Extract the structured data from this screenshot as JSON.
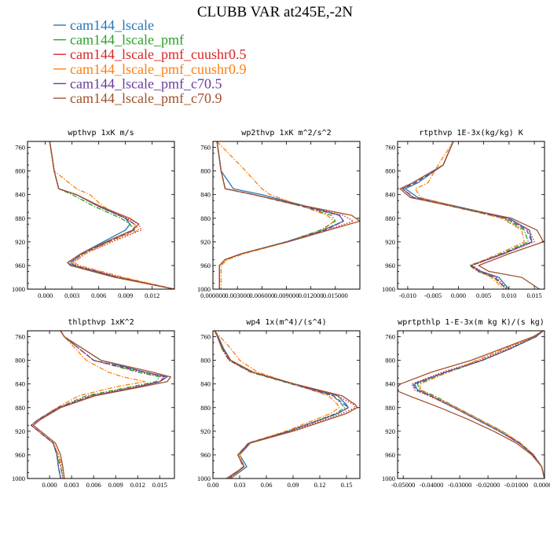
{
  "chart_data": {
    "type": "line",
    "title": "CLUBB VAR at245E,-2N",
    "legend": [
      {
        "name": "cam144_lscale",
        "color": "#2878b4",
        "dash": "solid"
      },
      {
        "name": "cam144_lscale_pmf",
        "color": "#2ca02c",
        "dash": "dashdot"
      },
      {
        "name": "cam144_lscale_pmf_cuushr0.5",
        "color": "#d62728",
        "dash": "dotted"
      },
      {
        "name": "cam144_lscale_pmf_cuushr0.9",
        "color": "#ff7f0e",
        "dash": "dashdot"
      },
      {
        "name": "cam144_lscale_pmf_c70.5",
        "color": "#6a3d9a",
        "dash": "dashed"
      },
      {
        "name": "cam144_lscale_pmf_c70.9",
        "color": "#a0522d",
        "dash": "solid"
      }
    ],
    "y_axis": {
      "ylim": [
        1000,
        750
      ],
      "ticks": [
        760,
        800,
        840,
        880,
        920,
        960,
        1000
      ],
      "tick_labels": [
        "760",
        "800",
        "840",
        "880",
        "920",
        "960",
        "1000"
      ]
    },
    "panels": [
      {
        "title": "wpthvp  1xK m/s",
        "xlim": [
          -0.002,
          0.0145
        ],
        "xticks": [
          0.0,
          0.003,
          0.006,
          0.009,
          0.012
        ],
        "xtick_labels": [
          "0.000",
          "0.003",
          "0.006",
          "0.009",
          "0.012"
        ],
        "p": [
          750,
          800,
          830,
          840,
          860,
          880,
          890,
          900,
          920,
          940,
          955,
          960,
          980,
          1000
        ],
        "series": [
          [
            0.0005,
            0.001,
            0.0015,
            0.0035,
            0.006,
            0.009,
            0.0095,
            0.009,
            0.0065,
            0.004,
            0.0025,
            0.003,
            0.008,
            0.0145
          ],
          [
            0.0005,
            0.001,
            0.0015,
            0.003,
            0.0055,
            0.0085,
            0.0095,
            0.01,
            0.007,
            0.0042,
            0.0028,
            0.0032,
            0.0082,
            0.0145
          ],
          [
            0.0005,
            0.001,
            0.0015,
            0.0035,
            0.006,
            0.0092,
            0.0105,
            0.0108,
            0.0075,
            0.0045,
            0.003,
            0.0035,
            0.0085,
            0.0145
          ],
          [
            0.0005,
            0.001,
            0.0035,
            0.005,
            0.0065,
            0.009,
            0.01,
            0.0105,
            0.0072,
            0.0045,
            0.0032,
            0.0038,
            0.0088,
            0.0145
          ],
          [
            0.0005,
            0.001,
            0.0015,
            0.0035,
            0.006,
            0.009,
            0.01,
            0.01,
            0.007,
            0.0042,
            0.0028,
            0.0033,
            0.0082,
            0.0145
          ],
          [
            0.0005,
            0.001,
            0.0015,
            0.0035,
            0.0062,
            0.0095,
            0.0105,
            0.0098,
            0.0068,
            0.004,
            0.0025,
            0.0028,
            0.0078,
            0.0145
          ]
        ]
      },
      {
        "title": "wp2thvp  1xK m^2/s^2",
        "xlim": [
          0.0,
          0.018
        ],
        "xticks": [
          0.0,
          0.003,
          0.006,
          0.009,
          0.012,
          0.015
        ],
        "xtick_labels": [
          "0.000000",
          "0.003000",
          "0.006000",
          "0.009000",
          "0.012000",
          "0.015000"
        ],
        "p": [
          750,
          800,
          830,
          840,
          860,
          875,
          885,
          900,
          920,
          940,
          950,
          960,
          1000
        ],
        "series": [
          [
            0.0005,
            0.001,
            0.0025,
            0.006,
            0.0115,
            0.0155,
            0.016,
            0.0135,
            0.009,
            0.0035,
            0.0015,
            0.0008,
            0.0008
          ],
          [
            0.0005,
            0.001,
            0.0015,
            0.005,
            0.011,
            0.0145,
            0.015,
            0.0132,
            0.009,
            0.0035,
            0.0015,
            0.0008,
            0.0008
          ],
          [
            0.0005,
            0.001,
            0.0015,
            0.005,
            0.0112,
            0.016,
            0.0172,
            0.014,
            0.0092,
            0.0035,
            0.0015,
            0.0008,
            0.0008
          ],
          [
            0.0005,
            0.004,
            0.006,
            0.007,
            0.011,
            0.014,
            0.0148,
            0.0135,
            0.0092,
            0.0038,
            0.0018,
            0.001,
            0.001
          ],
          [
            0.0005,
            0.001,
            0.0015,
            0.005,
            0.011,
            0.0155,
            0.016,
            0.0138,
            0.009,
            0.0035,
            0.0015,
            0.0008,
            0.0008
          ],
          [
            0.0005,
            0.001,
            0.0015,
            0.005,
            0.0115,
            0.017,
            0.018,
            0.0142,
            0.0092,
            0.0035,
            0.0015,
            0.0008,
            0.0008
          ]
        ]
      },
      {
        "title": "rtpthvp  1E-3x(kg/kg) K",
        "xlim": [
          -0.012,
          0.017
        ],
        "xticks": [
          -0.01,
          -0.005,
          0.0,
          0.005,
          0.01,
          0.015
        ],
        "xtick_labels": [
          "-0.010",
          "-0.005",
          "0.000",
          "0.005",
          "0.010",
          "0.015"
        ],
        "p": [
          750,
          790,
          820,
          830,
          845,
          880,
          900,
          920,
          940,
          960,
          970,
          980,
          1000
        ],
        "series": [
          [
            -0.001,
            -0.003,
            -0.008,
            -0.0105,
            -0.008,
            0.01,
            0.014,
            0.0145,
            0.009,
            0.0025,
            0.0045,
            0.008,
            0.01
          ],
          [
            -0.001,
            -0.003,
            -0.009,
            -0.011,
            -0.009,
            0.009,
            0.013,
            0.0138,
            0.0085,
            0.0022,
            0.0038,
            0.007,
            0.0095
          ],
          [
            -0.001,
            -0.003,
            -0.009,
            -0.011,
            -0.009,
            0.0095,
            0.014,
            0.015,
            0.009,
            0.0028,
            0.0045,
            0.0075,
            0.0098
          ],
          [
            -0.001,
            -0.004,
            -0.006,
            -0.0085,
            -0.0075,
            0.0085,
            0.0125,
            0.013,
            0.008,
            0.0025,
            0.004,
            0.0065,
            0.009
          ],
          [
            -0.001,
            -0.003,
            -0.0085,
            -0.011,
            -0.0088,
            0.0095,
            0.0135,
            0.0145,
            0.0088,
            0.0025,
            0.004,
            0.0072,
            0.0095
          ],
          [
            -0.001,
            -0.003,
            -0.009,
            -0.0115,
            -0.0095,
            0.0105,
            0.0155,
            0.0168,
            0.01,
            0.004,
            0.006,
            0.0125,
            0.016
          ]
        ]
      },
      {
        "title": "thlpthvp  1xK^2",
        "xlim": [
          -0.003,
          0.017
        ],
        "xticks": [
          0.0,
          0.003,
          0.006,
          0.009,
          0.012,
          0.015
        ],
        "xtick_labels": [
          "0.000",
          "0.003",
          "0.006",
          "0.009",
          "0.012",
          "0.015"
        ],
        "p": [
          750,
          760,
          800,
          820,
          828,
          836,
          845,
          860,
          880,
          900,
          910,
          920,
          940,
          960,
          980,
          1000
        ],
        "series": [
          [
            0.0015,
            0.002,
            0.007,
            0.013,
            0.016,
            0.015,
            0.012,
            0.006,
            0.0015,
            -0.0015,
            -0.0025,
            -0.0015,
            0.0005,
            0.001,
            0.0012,
            0.0015
          ],
          [
            0.0015,
            0.002,
            0.006,
            0.012,
            0.015,
            0.0145,
            0.011,
            0.005,
            0.0012,
            -0.0015,
            -0.0025,
            -0.0015,
            0.0005,
            0.001,
            0.0015,
            0.0018
          ],
          [
            0.0015,
            0.002,
            0.006,
            0.0125,
            0.0155,
            0.015,
            0.0115,
            0.0055,
            0.0012,
            -0.0015,
            -0.0025,
            -0.0015,
            0.0005,
            0.0012,
            0.0016,
            0.0018
          ],
          [
            0.0015,
            0.002,
            0.005,
            0.008,
            0.01,
            0.013,
            0.009,
            0.004,
            0.001,
            -0.0015,
            -0.0025,
            -0.0015,
            0.0005,
            0.0012,
            0.0018,
            0.002
          ],
          [
            0.0015,
            0.002,
            0.006,
            0.013,
            0.0158,
            0.015,
            0.012,
            0.0058,
            0.0012,
            -0.0015,
            -0.0025,
            -0.0015,
            0.0005,
            0.001,
            0.0012,
            0.0015
          ],
          [
            0.0015,
            0.002,
            0.007,
            0.014,
            0.0165,
            0.016,
            0.0125,
            0.0062,
            0.0015,
            -0.0012,
            -0.0022,
            -0.0012,
            0.0008,
            0.0015,
            0.0018,
            0.002
          ]
        ]
      },
      {
        "title": "wp4  1x(m^4)/(s^4)",
        "xlim": [
          0.0,
          0.165
        ],
        "xticks": [
          0.0,
          0.03,
          0.06,
          0.09,
          0.12,
          0.15
        ],
        "xtick_labels": [
          "0.00",
          "0.03",
          "0.06",
          "0.09",
          "0.12",
          "0.15"
        ],
        "p": [
          750,
          760,
          780,
          800,
          820,
          840,
          860,
          875,
          880,
          890,
          920,
          940,
          960,
          980,
          1000
        ],
        "series": [
          [
            0.002,
            0.006,
            0.012,
            0.02,
            0.045,
            0.09,
            0.14,
            0.15,
            0.152,
            0.14,
            0.085,
            0.042,
            0.03,
            0.038,
            0.02
          ],
          [
            0.002,
            0.005,
            0.01,
            0.018,
            0.042,
            0.088,
            0.135,
            0.145,
            0.148,
            0.138,
            0.085,
            0.04,
            0.028,
            0.035,
            0.018
          ],
          [
            0.002,
            0.005,
            0.01,
            0.018,
            0.043,
            0.09,
            0.14,
            0.158,
            0.16,
            0.145,
            0.088,
            0.04,
            0.028,
            0.035,
            0.018
          ],
          [
            0.002,
            0.008,
            0.02,
            0.03,
            0.05,
            0.09,
            0.13,
            0.14,
            0.142,
            0.132,
            0.082,
            0.04,
            0.03,
            0.035,
            0.02
          ],
          [
            0.002,
            0.005,
            0.011,
            0.019,
            0.044,
            0.09,
            0.135,
            0.148,
            0.152,
            0.14,
            0.085,
            0.04,
            0.028,
            0.034,
            0.018
          ],
          [
            0.002,
            0.005,
            0.011,
            0.02,
            0.045,
            0.092,
            0.145,
            0.16,
            0.162,
            0.15,
            0.09,
            0.042,
            0.028,
            0.035,
            0.015
          ]
        ]
      },
      {
        "title": "wprtpthlp  1-E-3x(m kg K)/(s kg)",
        "xlim": [
          -0.052,
          0.0
        ],
        "xticks": [
          -0.05,
          -0.04,
          -0.03,
          -0.02,
          -0.01,
          0.0
        ],
        "xtick_labels": [
          "-0.05000",
          "-0.04000",
          "-0.03000",
          "-0.02000",
          "-0.01000",
          "0.00000"
        ],
        "p": [
          750,
          760,
          780,
          800,
          820,
          840,
          850,
          860,
          880,
          900,
          920,
          940,
          960,
          980,
          1000
        ],
        "series": [
          [
            -0.0005,
            -0.003,
            -0.012,
            -0.022,
            -0.035,
            -0.046,
            -0.045,
            -0.04,
            -0.032,
            -0.024,
            -0.016,
            -0.009,
            -0.004,
            -0.001,
            0.0
          ],
          [
            -0.0005,
            -0.003,
            -0.012,
            -0.022,
            -0.034,
            -0.045,
            -0.044,
            -0.039,
            -0.031,
            -0.023,
            -0.015,
            -0.0085,
            -0.0038,
            -0.001,
            0.0
          ],
          [
            -0.0005,
            -0.0035,
            -0.013,
            -0.023,
            -0.036,
            -0.047,
            -0.046,
            -0.041,
            -0.032,
            -0.024,
            -0.016,
            -0.009,
            -0.004,
            -0.001,
            0.0
          ],
          [
            -0.0005,
            -0.004,
            -0.014,
            -0.024,
            -0.034,
            -0.044,
            -0.044,
            -0.04,
            -0.031,
            -0.023,
            -0.015,
            -0.0085,
            -0.0038,
            -0.001,
            0.0
          ],
          [
            -0.0005,
            -0.003,
            -0.012,
            -0.022,
            -0.035,
            -0.0465,
            -0.0455,
            -0.0405,
            -0.032,
            -0.024,
            -0.016,
            -0.009,
            -0.004,
            -0.001,
            0.0
          ],
          [
            -0.0005,
            -0.004,
            -0.015,
            -0.026,
            -0.04,
            -0.051,
            -0.053,
            -0.048,
            -0.037,
            -0.027,
            -0.018,
            -0.01,
            -0.0045,
            -0.001,
            0.0
          ]
        ]
      }
    ]
  }
}
